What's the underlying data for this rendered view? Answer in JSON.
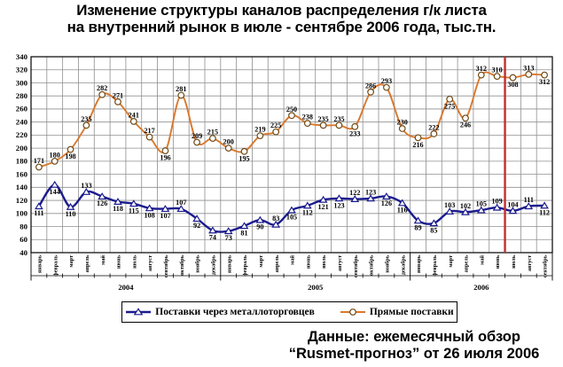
{
  "title": {
    "line1": "Изменение структуры каналов распределения г/к листа",
    "line2": "на внутренний рынок в июле - сентябре 2006 года, тыс.тн."
  },
  "legend": {
    "items": [
      {
        "label": "Поставки через металлоторговцев"
      },
      {
        "label": "Прямые поставки"
      }
    ]
  },
  "footer": {
    "line1": "Данные: ежемесячный обзор",
    "line2": "“Rusmet-прогноз” от 26 июля 2006"
  },
  "chart_data": {
    "type": "line",
    "title": "Изменение структуры каналов распределения г/к листа на внутренний рынок в июле - сентябре 2006 года, тыс.тн.",
    "grid": true,
    "legend_position": "bottom",
    "y_axis": {
      "min": 40,
      "max": 340,
      "step": 20
    },
    "x_axis": {
      "month_names": [
        "январь",
        "февраль",
        "март",
        "апрель",
        "май",
        "июнь",
        "июль",
        "август",
        "сентябрь",
        "октябрь",
        "ноябрь",
        "декабрь"
      ],
      "years": [
        {
          "label": "2004",
          "months": 12
        },
        {
          "label": "2005",
          "months": 12
        },
        {
          "label": "2006",
          "months": 9
        }
      ]
    },
    "series": [
      {
        "name": "Прямые поставки",
        "color": "#d9782d",
        "marker": "circle",
        "marker_stroke": "#6e4a14",
        "line_width": 1.9,
        "label_default": "above",
        "label_flip": [
          2,
          8,
          13,
          20,
          24,
          26,
          27,
          30,
          32
        ],
        "values": [
          171,
          180,
          198,
          235,
          282,
          271,
          241,
          217,
          196,
          281,
          209,
          215,
          200,
          195,
          219,
          225,
          250,
          238,
          235,
          235,
          233,
          286,
          293,
          230,
          216,
          222,
          275,
          246,
          312,
          310,
          308,
          313,
          312
        ]
      },
      {
        "name": "Поставки через металлоторговцев",
        "color": "#1b1b8e",
        "marker": "triangle",
        "marker_stroke": "#1b1b8e",
        "line_width": 2.4,
        "label_default": "below",
        "label_flip": [
          3,
          9,
          15,
          20,
          21,
          26,
          27,
          28,
          29,
          30,
          31
        ],
        "values": [
          111,
          144,
          110,
          133,
          126,
          118,
          115,
          108,
          107,
          107,
          92,
          74,
          73,
          81,
          90,
          83,
          105,
          112,
          121,
          123,
          122,
          123,
          126,
          116,
          89,
          85,
          103,
          102,
          105,
          109,
          104,
          111,
          112
        ]
      }
    ],
    "forecast_divider": {
      "after_index": 29,
      "color": "#c03030"
    }
  }
}
